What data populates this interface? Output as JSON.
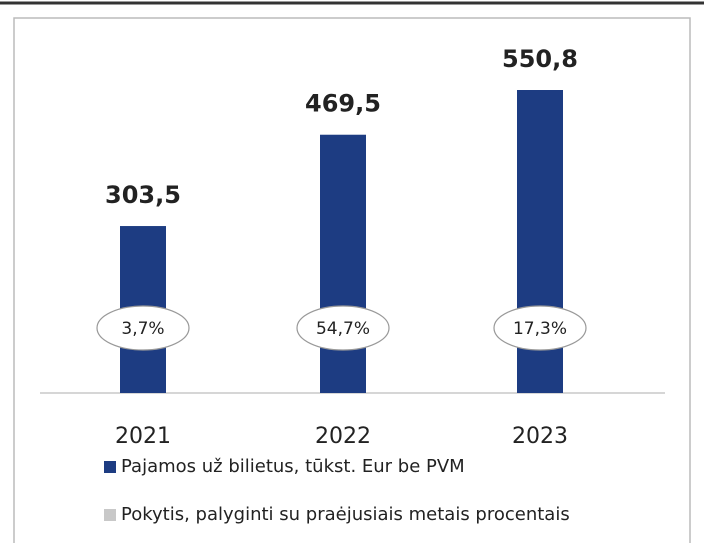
{
  "chart_data": {
    "type": "bar",
    "categories": [
      "2021",
      "2022",
      "2023"
    ],
    "series": [
      {
        "name": "Pajamos už bilietus, tūkst. Eur be PVM",
        "color": "#1d3c82",
        "values": [
          303.5,
          469.5,
          550.8
        ],
        "value_labels": [
          "303,5",
          "469,5",
          "550,8"
        ]
      },
      {
        "name": "Pokytis, palyginti su praėjusiais metais procentais",
        "color": "#c8c8c8",
        "values": [
          3.7,
          54.7,
          17.3
        ],
        "value_labels": [
          "3,7%",
          "54,7%",
          "17,3%"
        ]
      }
    ]
  }
}
